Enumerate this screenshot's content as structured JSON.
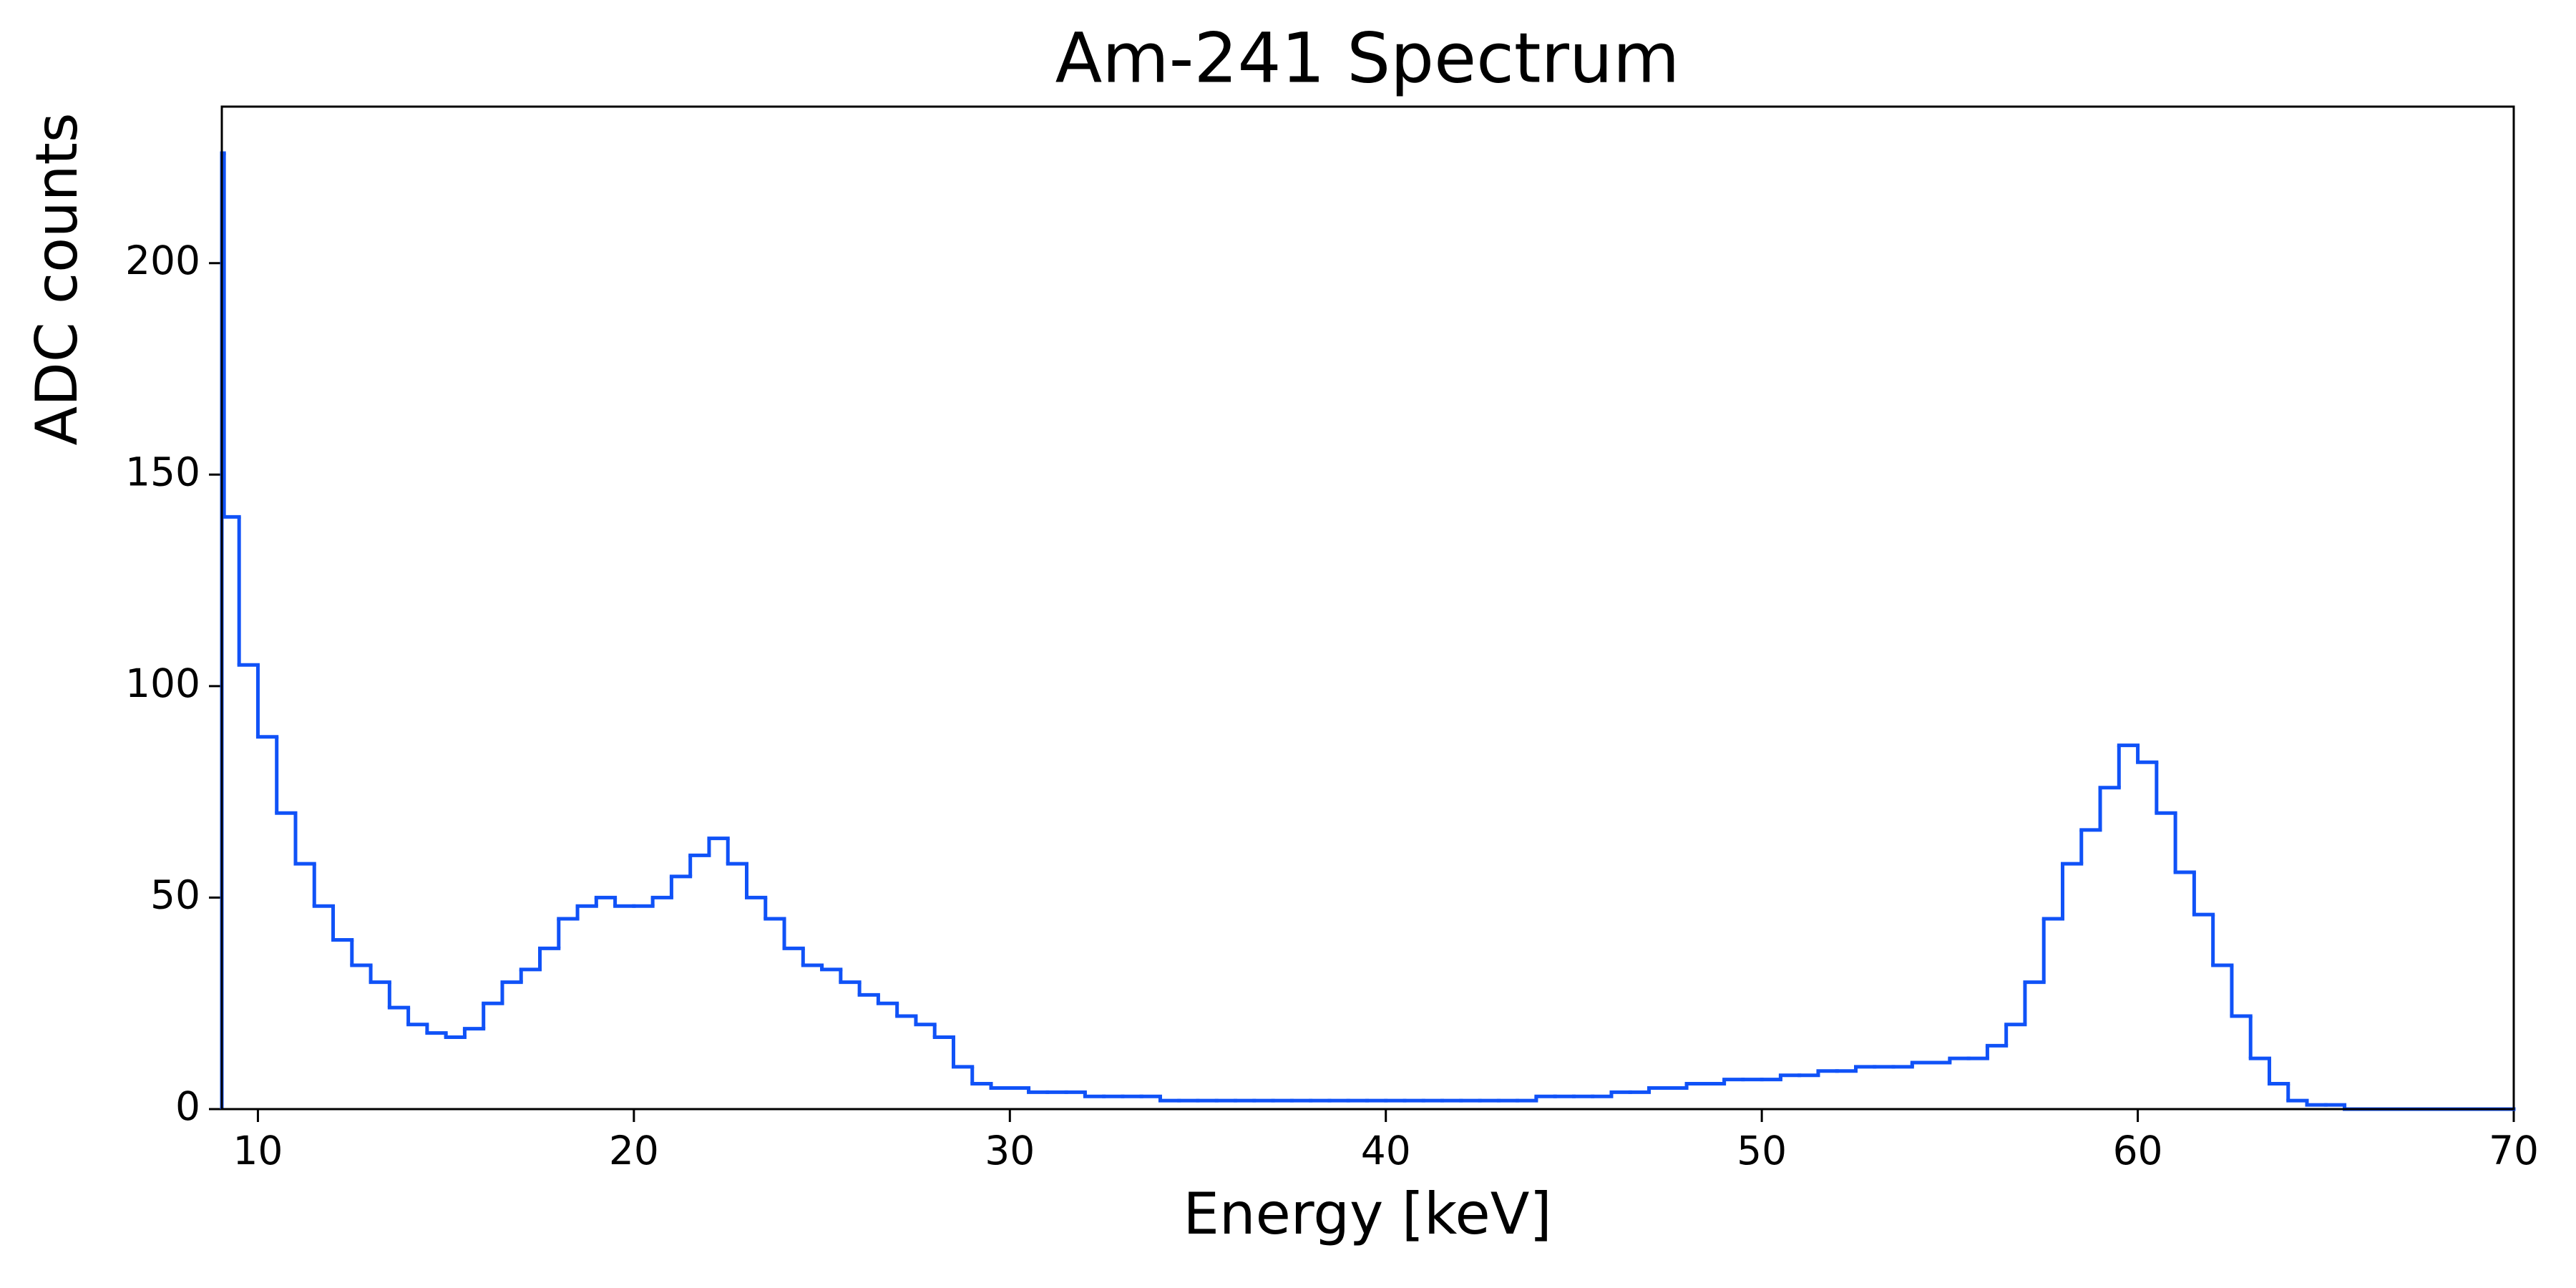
{
  "chart_data": {
    "type": "histogram",
    "title": "Am-241 Spectrum",
    "x_label": "Energy [keV]",
    "y_label": "ADC counts",
    "color": "#1052f7",
    "bins": [
      9.04,
      9.1,
      9.5,
      10,
      10.5,
      11,
      11.5,
      12,
      12.5,
      13,
      13.5,
      14,
      14.5,
      15,
      15.5,
      16,
      16.5,
      17,
      17.5,
      18,
      18.5,
      19,
      19.5,
      20,
      20.5,
      21,
      21.5,
      22,
      22.5,
      23,
      23.5,
      24,
      24.5,
      25,
      25.5,
      26,
      26.5,
      27,
      27.5,
      28,
      28.5,
      29,
      29.5,
      30,
      30.5,
      31,
      31.5,
      32,
      32.5,
      33,
      33.5,
      34,
      34.5,
      35,
      35.5,
      36,
      36.5,
      37,
      37.5,
      38,
      38.5,
      39,
      39.5,
      40,
      40.5,
      41,
      41.5,
      42,
      42.5,
      43,
      43.5,
      44,
      44.5,
      45,
      45.5,
      46,
      46.5,
      47,
      47.5,
      48,
      48.5,
      49,
      49.5,
      50,
      50.5,
      51,
      51.5,
      52,
      52.5,
      53,
      53.5,
      54,
      54.5,
      55,
      55.5,
      56,
      56.5,
      57,
      57.5,
      58,
      58.5,
      59,
      59.5,
      60,
      60.5,
      61,
      61.5,
      62,
      62.5,
      63,
      63.5,
      64,
      64.5,
      65,
      65.5,
      66,
      66.5,
      67,
      67.5,
      68,
      68.5,
      69,
      69.5,
      70
    ],
    "values": [
      226,
      140,
      105,
      88,
      70,
      58,
      48,
      40,
      34,
      30,
      24,
      20,
      18,
      17,
      19,
      25,
      30,
      33,
      38,
      45,
      48,
      50,
      48,
      48,
      50,
      55,
      60,
      64,
      58,
      50,
      45,
      38,
      34,
      33,
      30,
      27,
      25,
      22,
      20,
      17,
      10,
      6,
      5,
      5,
      4,
      4,
      4,
      3,
      3,
      3,
      3,
      2,
      2,
      2,
      2,
      2,
      2,
      2,
      2,
      2,
      2,
      2,
      2,
      2,
      2,
      2,
      2,
      2,
      2,
      2,
      2,
      3,
      3,
      3,
      3,
      4,
      4,
      5,
      5,
      6,
      6,
      7,
      7,
      7,
      8,
      8,
      9,
      9,
      10,
      10,
      10,
      11,
      11,
      12,
      12,
      15,
      20,
      30,
      45,
      58,
      66,
      76,
      86,
      82,
      70,
      56,
      46,
      34,
      22,
      12,
      6,
      2,
      1,
      1,
      0,
      0,
      0,
      0,
      0,
      0,
      0,
      0,
      0
    ],
    "xlim": [
      9.04,
      70
    ],
    "ylim": [
      0,
      237
    ],
    "xticks": [
      10,
      20,
      30,
      40,
      50,
      60,
      70
    ],
    "yticks": [
      0,
      50,
      100,
      150,
      200
    ]
  }
}
